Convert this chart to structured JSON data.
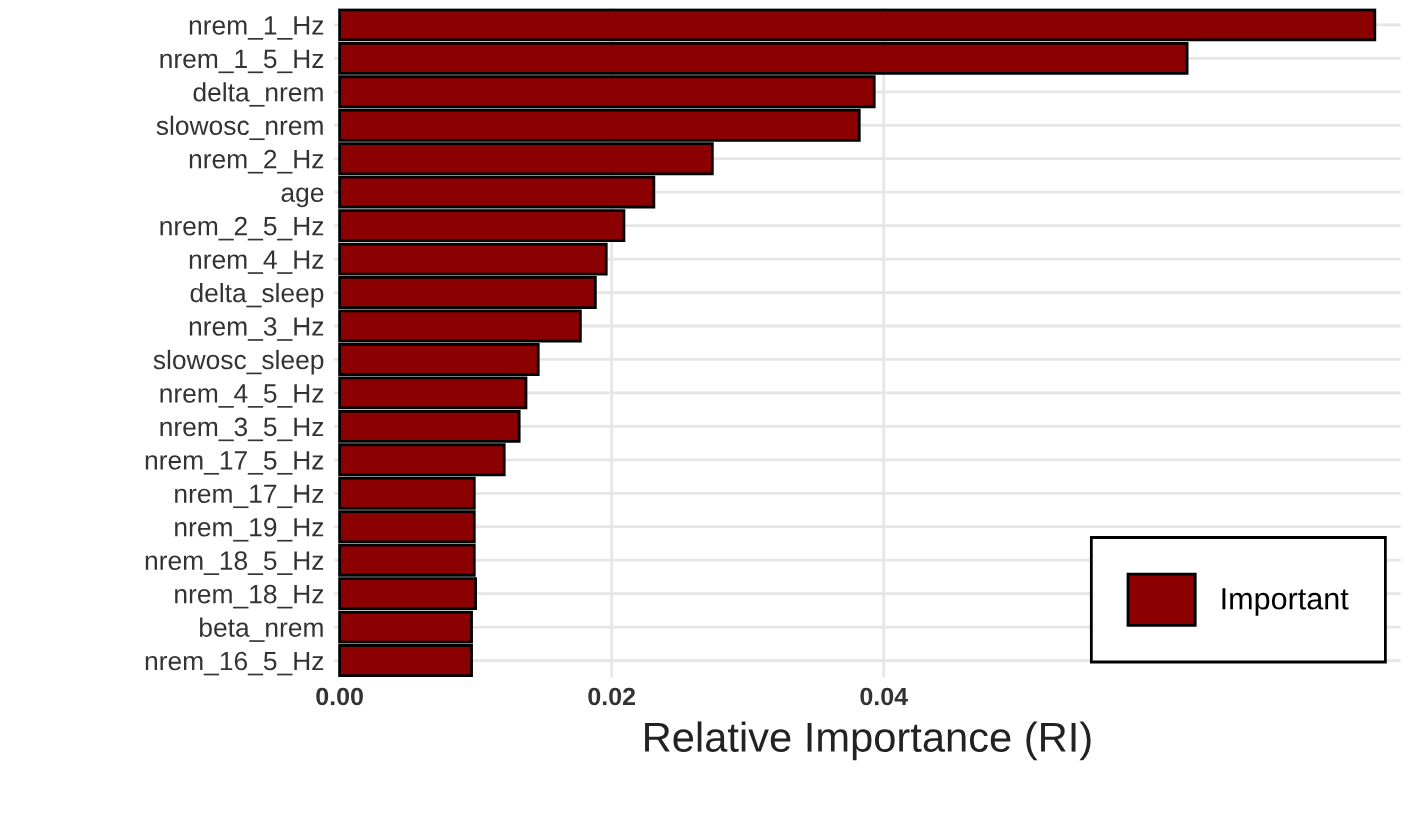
{
  "chart_data": {
    "type": "bar",
    "orientation": "horizontal",
    "xlabel": "Relative Importance (RI)",
    "categories": [
      "nrem_1_Hz",
      "nrem_1_5_Hz",
      "delta_nrem",
      "slowosc_nrem",
      "nrem_2_Hz",
      "age",
      "nrem_2_5_Hz",
      "nrem_4_Hz",
      "delta_sleep",
      "nrem_3_Hz",
      "slowosc_sleep",
      "nrem_4_5_Hz",
      "nrem_3_5_Hz",
      "nrem_17_5_Hz",
      "nrem_17_Hz",
      "nrem_19_Hz",
      "nrem_18_5_Hz",
      "nrem_18_Hz",
      "beta_nrem",
      "nrem_16_5_Hz"
    ],
    "series": [
      {
        "name": "Important",
        "color": "#8b0000",
        "values": [
          0.0761,
          0.0623,
          0.0393,
          0.0382,
          0.0274,
          0.0231,
          0.0209,
          0.0196,
          0.0188,
          0.0177,
          0.0146,
          0.0137,
          0.0132,
          0.0121,
          0.0099,
          0.0099,
          0.0099,
          0.01,
          0.0097,
          0.0097
        ]
      }
    ],
    "xlim": [
      -0.0004,
      0.078
    ],
    "xticks": [
      {
        "value": 0,
        "label": "0.00"
      },
      {
        "value": 0.02,
        "label": "0.02"
      },
      {
        "value": 0.04,
        "label": "0.04"
      }
    ],
    "grid": true,
    "legend": "bottom right"
  }
}
